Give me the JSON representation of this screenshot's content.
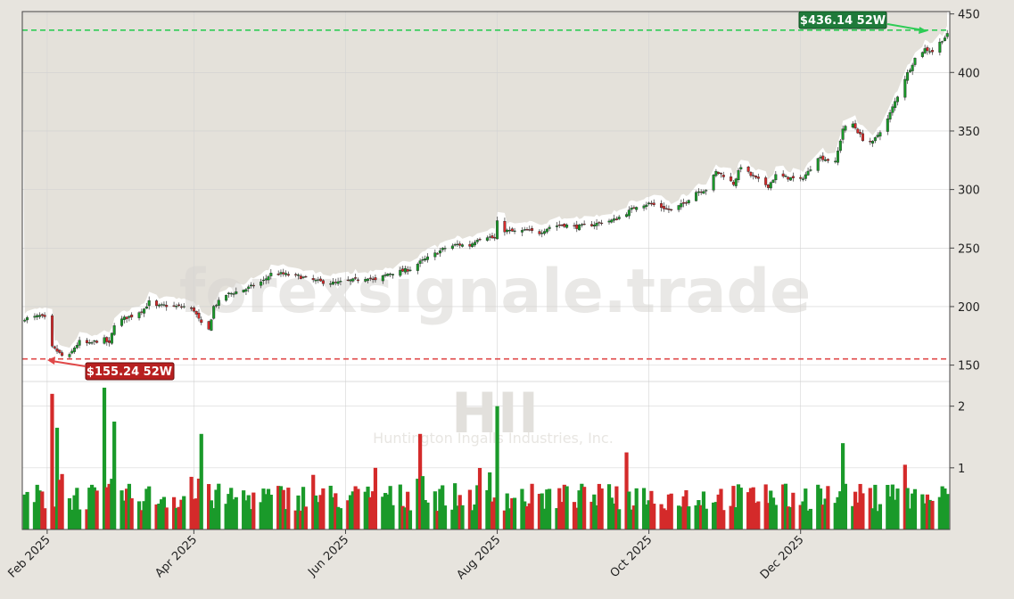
{
  "symbol": "HII",
  "company": "Huntington Ingalls Industries, Inc.",
  "watermark": "forexsignale.trade",
  "colors": {
    "up": "#1a9a2a",
    "down": "#d42a2a",
    "high_line": "#2ecc55",
    "low_line": "#e04848",
    "area_fill": "#e4e1da",
    "frame": "#e7e4de",
    "plot_bg": "#ffffff"
  },
  "annotations": {
    "high_label": "$436.14 52W",
    "low_label": "$155.24 52W"
  },
  "chart_data": [
    {
      "type": "candlestick",
      "title": "",
      "xlabel": "",
      "ylabel": "",
      "grid": true,
      "y_axis_side": "right",
      "ylim": [
        136,
        452
      ],
      "yticks": [
        150,
        200,
        250,
        300,
        350,
        400,
        450
      ],
      "x_ticks": [
        "Feb 2025",
        "Apr 2025",
        "Jun 2025",
        "Aug 2025",
        "Oct 2025",
        "Dec 2025"
      ],
      "x_tick_dates": [
        "2025-02-01",
        "2025-04-01",
        "2025-06-01",
        "2025-08-01",
        "2025-10-01",
        "2025-12-01"
      ],
      "date_range": [
        "2025-01-22",
        "2026-01-30"
      ],
      "high_52w": 436.14,
      "low_52w": 155.24,
      "close_path": [
        [
          "2025-01-24",
          190
        ],
        [
          "2025-01-27",
          191
        ],
        [
          "2025-01-29",
          192
        ],
        [
          "2025-01-31",
          190
        ],
        [
          "2025-02-03",
          165
        ],
        [
          "2025-02-05",
          162
        ],
        [
          "2025-02-07",
          158
        ],
        [
          "2025-02-10",
          158
        ],
        [
          "2025-02-12",
          165
        ],
        [
          "2025-02-14",
          170
        ],
        [
          "2025-02-18",
          168
        ],
        [
          "2025-02-20",
          170
        ],
        [
          "2025-02-24",
          172
        ],
        [
          "2025-02-26",
          168
        ],
        [
          "2025-02-28",
          185
        ],
        [
          "2025-03-04",
          190
        ],
        [
          "2025-03-07",
          192
        ],
        [
          "2025-03-12",
          198
        ],
        [
          "2025-03-14",
          204
        ],
        [
          "2025-03-17",
          200
        ],
        [
          "2025-03-20",
          201
        ],
        [
          "2025-03-25",
          200
        ],
        [
          "2025-03-28",
          200
        ],
        [
          "2025-04-01",
          197
        ],
        [
          "2025-04-04",
          185
        ],
        [
          "2025-04-07",
          180
        ],
        [
          "2025-04-09",
          200
        ],
        [
          "2025-04-14",
          210
        ],
        [
          "2025-04-17",
          212
        ],
        [
          "2025-04-22",
          215
        ],
        [
          "2025-04-25",
          218
        ],
        [
          "2025-04-29",
          222
        ],
        [
          "2025-05-02",
          228
        ],
        [
          "2025-05-06",
          228
        ],
        [
          "2025-05-09",
          227
        ],
        [
          "2025-05-13",
          226
        ],
        [
          "2025-05-16",
          224
        ],
        [
          "2025-05-20",
          222
        ],
        [
          "2025-05-23",
          221
        ],
        [
          "2025-05-28",
          220
        ],
        [
          "2025-06-02",
          222
        ],
        [
          "2025-06-06",
          223
        ],
        [
          "2025-06-10",
          225
        ],
        [
          "2025-06-13",
          222
        ],
        [
          "2025-06-18",
          228
        ],
        [
          "2025-06-23",
          230
        ],
        [
          "2025-06-27",
          232
        ],
        [
          "2025-07-01",
          238
        ],
        [
          "2025-07-07",
          245
        ],
        [
          "2025-07-11",
          250
        ],
        [
          "2025-07-16",
          253
        ],
        [
          "2025-07-21",
          252
        ],
        [
          "2025-07-24",
          258
        ],
        [
          "2025-07-28",
          260
        ],
        [
          "2025-07-31",
          258
        ],
        [
          "2025-08-01",
          272
        ],
        [
          "2025-08-04",
          265
        ],
        [
          "2025-08-08",
          264
        ],
        [
          "2025-08-13",
          265
        ],
        [
          "2025-08-18",
          263
        ],
        [
          "2025-08-22",
          268
        ],
        [
          "2025-08-27",
          270
        ],
        [
          "2025-09-02",
          268
        ],
        [
          "2025-09-08",
          270
        ],
        [
          "2025-09-12",
          272
        ],
        [
          "2025-09-17",
          274
        ],
        [
          "2025-09-22",
          280
        ],
        [
          "2025-09-26",
          286
        ],
        [
          "2025-10-01",
          288
        ],
        [
          "2025-10-06",
          285
        ],
        [
          "2025-10-10",
          282
        ],
        [
          "2025-10-15",
          288
        ],
        [
          "2025-10-20",
          298
        ],
        [
          "2025-10-24",
          300
        ],
        [
          "2025-10-28",
          315
        ],
        [
          "2025-10-31",
          312
        ],
        [
          "2025-11-04",
          305
        ],
        [
          "2025-11-07",
          320
        ],
        [
          "2025-11-11",
          312
        ],
        [
          "2025-11-14",
          308
        ],
        [
          "2025-11-18",
          303
        ],
        [
          "2025-11-21",
          312
        ],
        [
          "2025-11-26",
          310
        ],
        [
          "2025-12-01",
          308
        ],
        [
          "2025-12-04",
          315
        ],
        [
          "2025-12-08",
          328
        ],
        [
          "2025-12-11",
          326
        ],
        [
          "2025-12-15",
          323
        ],
        [
          "2025-12-18",
          352
        ],
        [
          "2025-12-22",
          356
        ],
        [
          "2025-12-26",
          343
        ],
        [
          "2025-12-30",
          340
        ],
        [
          "2026-01-05",
          360
        ],
        [
          "2026-01-08",
          375
        ],
        [
          "2026-01-12",
          395
        ],
        [
          "2026-01-16",
          412
        ],
        [
          "2026-01-20",
          420
        ],
        [
          "2026-01-23",
          418
        ],
        [
          "2026-01-27",
          428
        ],
        [
          "2026-01-29",
          432
        ]
      ]
    },
    {
      "type": "bar",
      "title": "",
      "xlabel": "",
      "ylabel": "",
      "ylim": [
        0,
        2.4
      ],
      "yticks": [
        1,
        2
      ],
      "tall_bars": [
        [
          "2025-02-03",
          2.2,
          "down"
        ],
        [
          "2025-02-05",
          1.65,
          "up"
        ],
        [
          "2025-02-24",
          2.3,
          "up"
        ],
        [
          "2025-02-28",
          1.75,
          "up"
        ],
        [
          "2025-04-04",
          1.55,
          "up"
        ],
        [
          "2025-06-13",
          1.0,
          "down"
        ],
        [
          "2025-07-01",
          1.55,
          "down"
        ],
        [
          "2025-08-01",
          2.0,
          "up"
        ],
        [
          "2025-09-22",
          1.25,
          "down"
        ],
        [
          "2025-12-18",
          1.4,
          "up"
        ],
        [
          "2026-01-12",
          1.05,
          "down"
        ]
      ]
    }
  ]
}
